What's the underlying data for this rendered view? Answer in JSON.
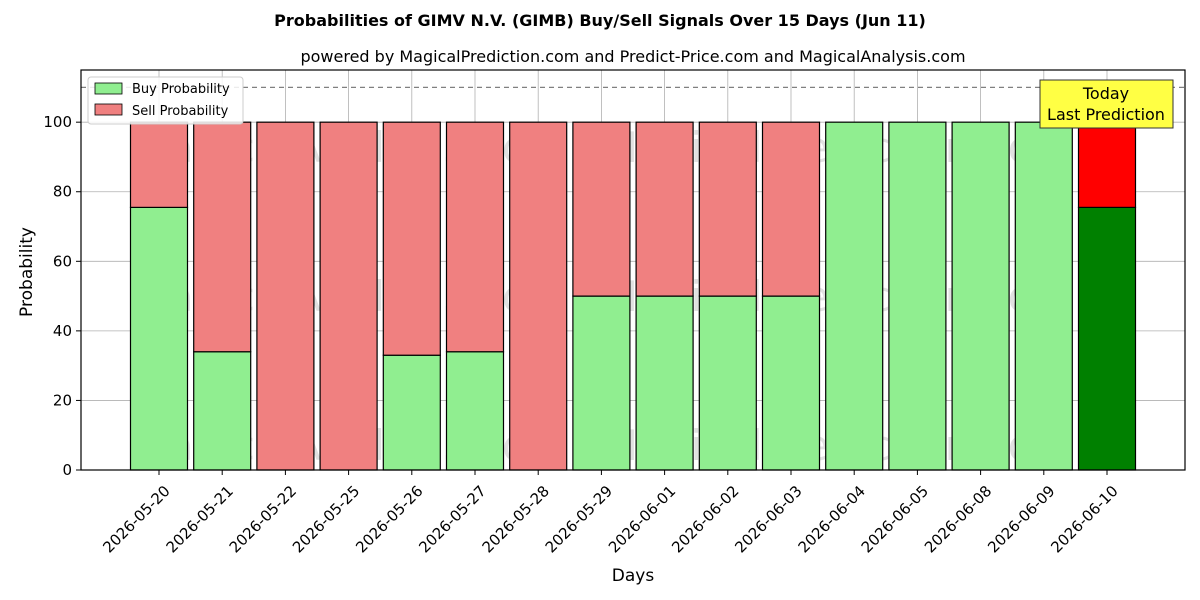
{
  "chart_data": {
    "type": "bar",
    "stacked": true,
    "title": "Probabilities of GIMV N.V. (GIMB) Buy/Sell Signals Over 15 Days (Jun 11)",
    "subtitle": "powered by MagicalPrediction.com and Predict-Price.com and MagicalAnalysis.com",
    "xlabel": "Days",
    "ylabel": "Probability",
    "ylim": [
      0,
      115
    ],
    "yticks": [
      0,
      20,
      40,
      60,
      80,
      100
    ],
    "reference_line": 110,
    "grid": true,
    "legend_position": "top-left",
    "categories": [
      "2026-05-20",
      "2026-05-21",
      "2026-05-22",
      "2026-05-25",
      "2026-05-26",
      "2026-05-27",
      "2026-05-28",
      "2026-05-29",
      "2026-06-01",
      "2026-06-02",
      "2026-06-03",
      "2026-06-04",
      "2026-06-05",
      "2026-06-08",
      "2026-06-09",
      "2026-06-10"
    ],
    "series": [
      {
        "name": "Buy Probability",
        "color": "#90ee90",
        "highlight_color": "#008000",
        "values": [
          75.5,
          34,
          0,
          0,
          33,
          34,
          0,
          50,
          50,
          50,
          50,
          100,
          100,
          100,
          100,
          75.5
        ]
      },
      {
        "name": "Sell Probability",
        "color": "#f08080",
        "highlight_color": "#ff0000",
        "values": [
          24.5,
          66,
          100,
          100,
          67,
          66,
          100,
          50,
          50,
          50,
          50,
          0,
          0,
          0,
          0,
          24.5
        ]
      }
    ],
    "highlight_index": 15,
    "annotation": {
      "line1": "Today",
      "line2": "Last Prediction",
      "color": "#ffff44"
    },
    "watermarks": [
      "MagicalAnalysis.com",
      "MagicalPrediction.com"
    ]
  }
}
